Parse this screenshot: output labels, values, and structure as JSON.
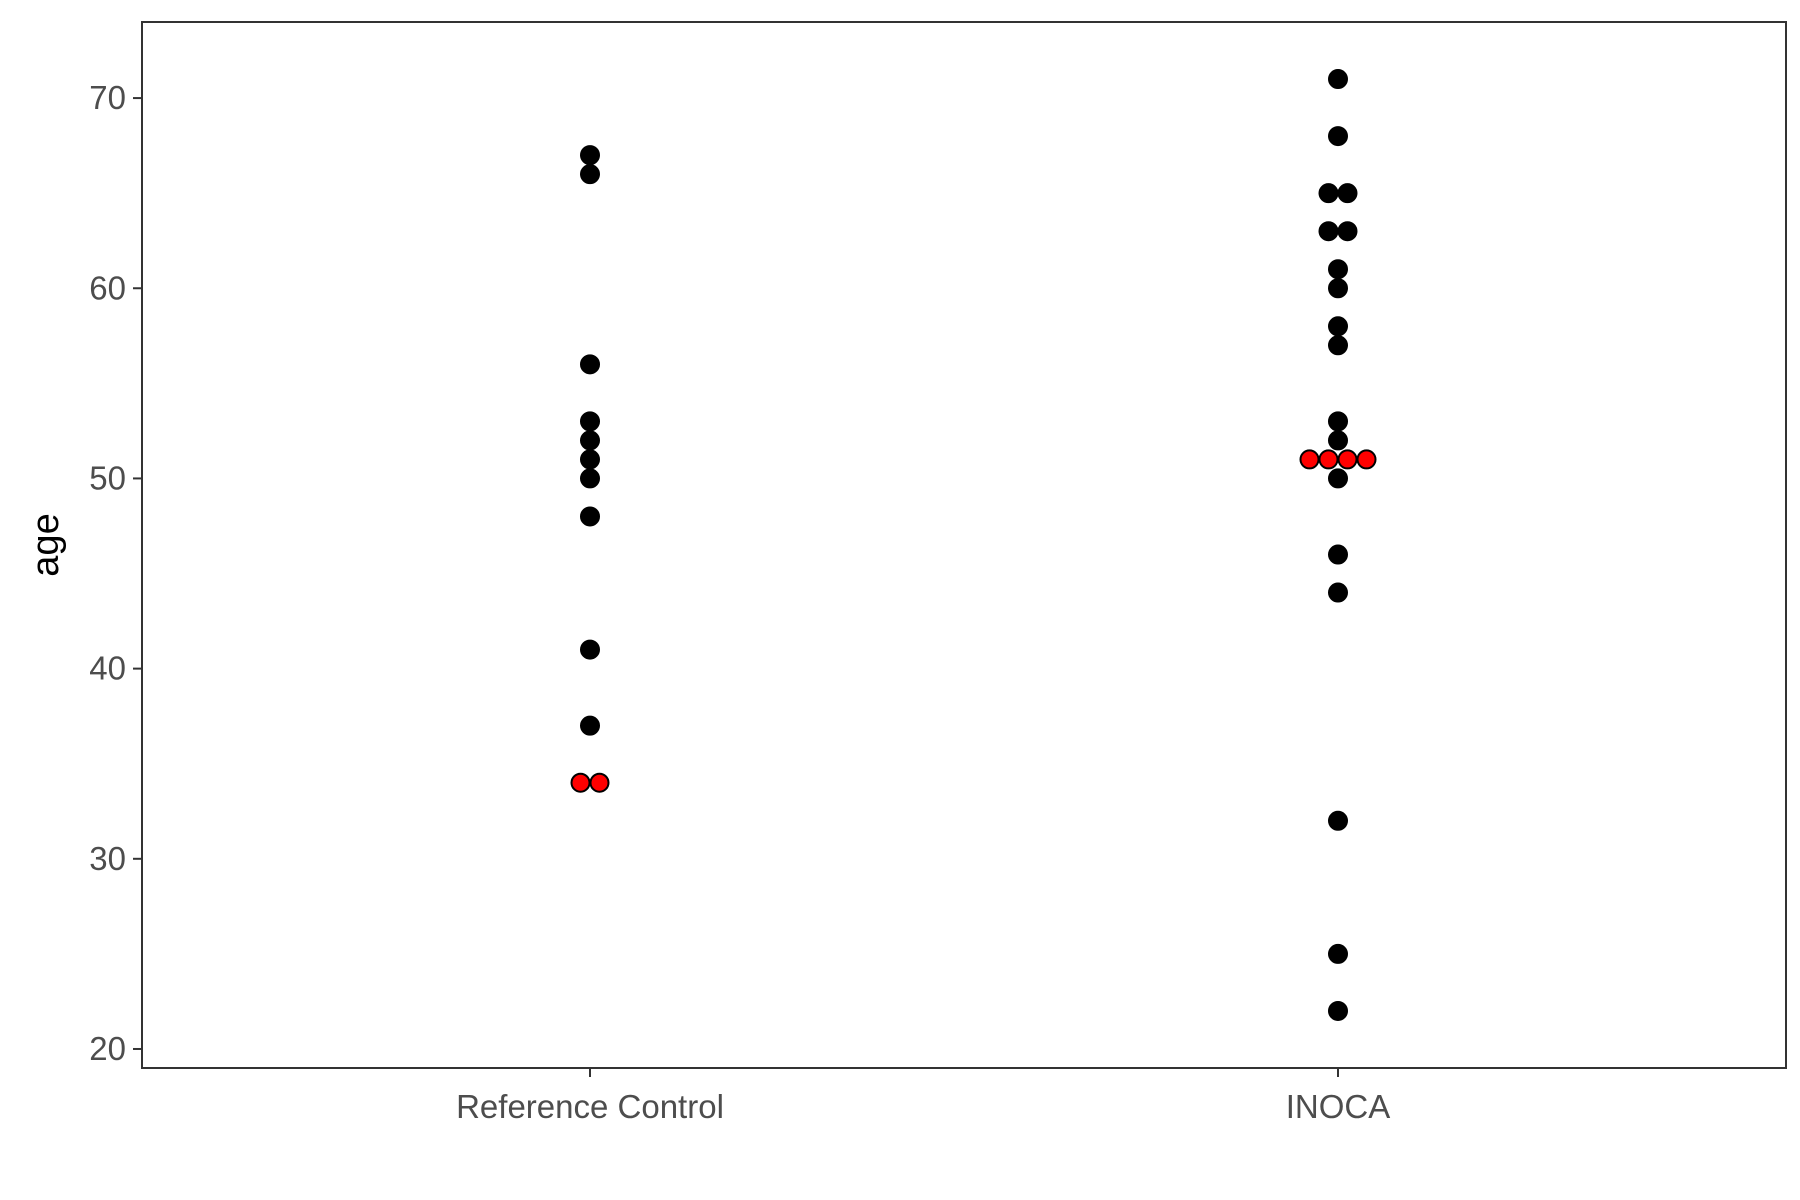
{
  "chart_data": {
    "type": "scatter",
    "title": "",
    "xlabel": "",
    "ylabel": "age",
    "ylim": [
      19,
      74
    ],
    "yticks": [
      20,
      30,
      40,
      50,
      60,
      70
    ],
    "categories": [
      "Reference Control",
      "INOCA"
    ],
    "grid": false,
    "legend": "none",
    "colors": {
      "default": "#000000",
      "highlight": "#ff0000",
      "outline": "#000000"
    },
    "points": [
      {
        "group": "Reference Control",
        "y": 67,
        "highlight": false
      },
      {
        "group": "Reference Control",
        "y": 66,
        "highlight": false
      },
      {
        "group": "Reference Control",
        "y": 56,
        "highlight": false
      },
      {
        "group": "Reference Control",
        "y": 53,
        "highlight": false
      },
      {
        "group": "Reference Control",
        "y": 52,
        "highlight": false
      },
      {
        "group": "Reference Control",
        "y": 51,
        "highlight": false
      },
      {
        "group": "Reference Control",
        "y": 50,
        "highlight": false
      },
      {
        "group": "Reference Control",
        "y": 48,
        "highlight": false
      },
      {
        "group": "Reference Control",
        "y": 41,
        "highlight": false
      },
      {
        "group": "Reference Control",
        "y": 37,
        "highlight": false
      },
      {
        "group": "Reference Control",
        "y": 34,
        "highlight": true
      },
      {
        "group": "Reference Control",
        "y": 34,
        "highlight": true
      },
      {
        "group": "INOCA",
        "y": 71,
        "highlight": false
      },
      {
        "group": "INOCA",
        "y": 68,
        "highlight": false
      },
      {
        "group": "INOCA",
        "y": 65,
        "highlight": false
      },
      {
        "group": "INOCA",
        "y": 65,
        "highlight": false
      },
      {
        "group": "INOCA",
        "y": 63,
        "highlight": false
      },
      {
        "group": "INOCA",
        "y": 63,
        "highlight": false
      },
      {
        "group": "INOCA",
        "y": 61,
        "highlight": false
      },
      {
        "group": "INOCA",
        "y": 60,
        "highlight": false
      },
      {
        "group": "INOCA",
        "y": 58,
        "highlight": false
      },
      {
        "group": "INOCA",
        "y": 57,
        "highlight": false
      },
      {
        "group": "INOCA",
        "y": 53,
        "highlight": false
      },
      {
        "group": "INOCA",
        "y": 52,
        "highlight": false
      },
      {
        "group": "INOCA",
        "y": 51,
        "highlight": true
      },
      {
        "group": "INOCA",
        "y": 51,
        "highlight": true
      },
      {
        "group": "INOCA",
        "y": 51,
        "highlight": true
      },
      {
        "group": "INOCA",
        "y": 51,
        "highlight": true
      },
      {
        "group": "INOCA",
        "y": 50,
        "highlight": false
      },
      {
        "group": "INOCA",
        "y": 46,
        "highlight": false
      },
      {
        "group": "INOCA",
        "y": 44,
        "highlight": false
      },
      {
        "group": "INOCA",
        "y": 32,
        "highlight": false
      },
      {
        "group": "INOCA",
        "y": 25,
        "highlight": false
      },
      {
        "group": "INOCA",
        "y": 22,
        "highlight": false
      }
    ]
  }
}
